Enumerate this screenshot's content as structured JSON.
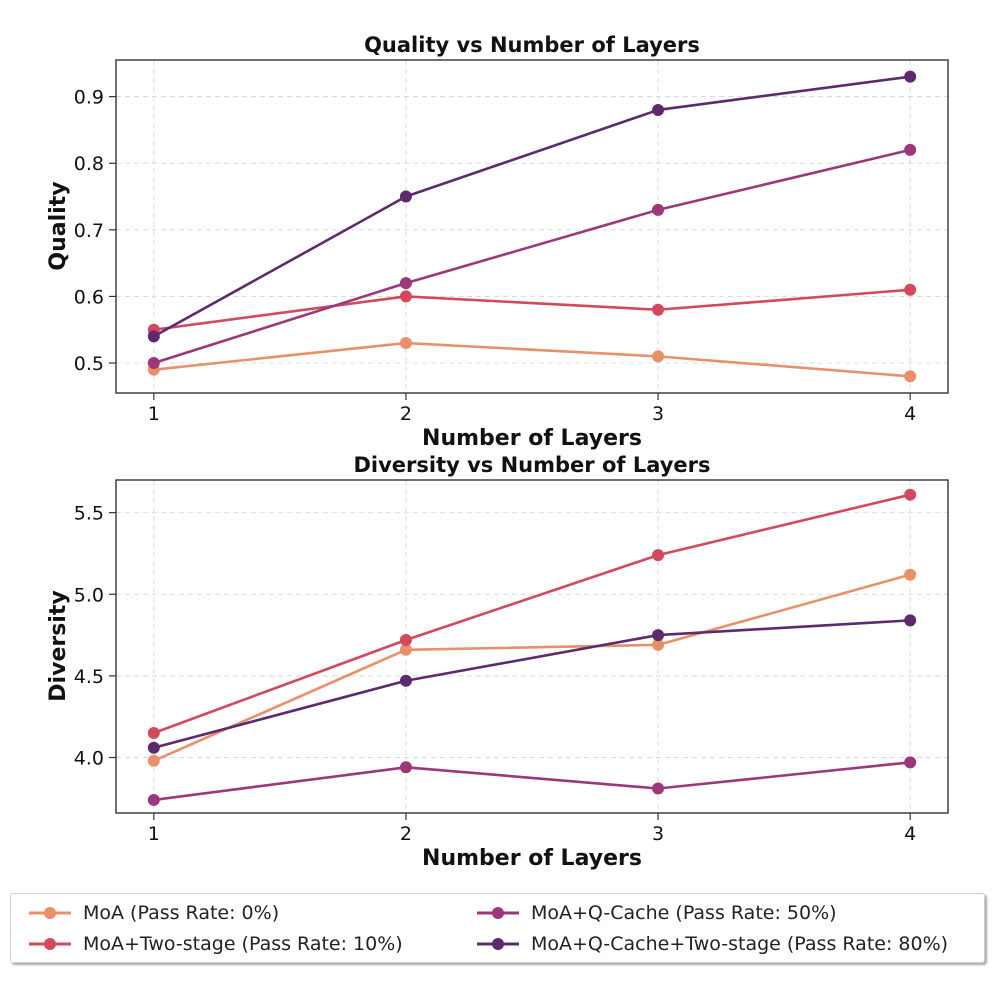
{
  "chart_data": [
    {
      "type": "line",
      "title": "Quality vs Number of Layers",
      "xlabel": "Number of Layers",
      "ylabel": "Quality",
      "x": [
        1,
        2,
        3,
        4
      ],
      "xlim": [
        0.85,
        4.15
      ],
      "ylim": [
        0.455,
        0.955
      ],
      "yticks": [
        0.5,
        0.6,
        0.7,
        0.8,
        0.9
      ],
      "ytick_labels": [
        "0.5",
        "0.6",
        "0.7",
        "0.8",
        "0.9"
      ],
      "xticks": [
        1,
        2,
        3,
        4
      ],
      "xtick_labels": [
        "1",
        "2",
        "3",
        "4"
      ],
      "grid": true,
      "series": [
        {
          "name": "MoA (Pass Rate: 0%)",
          "color": "#E8906A",
          "values": [
            0.49,
            0.53,
            0.51,
            0.48
          ]
        },
        {
          "name": "MoA+Two-stage (Pass Rate: 10%)",
          "color": "#D2495E",
          "values": [
            0.55,
            0.6,
            0.58,
            0.61
          ]
        },
        {
          "name": "MoA+Q-Cache (Pass Rate: 50%)",
          "color": "#9C3779",
          "values": [
            0.5,
            0.62,
            0.73,
            0.82
          ]
        },
        {
          "name": "MoA+Q-Cache+Two-stage (Pass Rate: 80%)",
          "color": "#5E2A6E",
          "values": [
            0.54,
            0.75,
            0.88,
            0.93
          ]
        }
      ]
    },
    {
      "type": "line",
      "title": "Diversity vs Number of Layers",
      "xlabel": "Number of Layers",
      "ylabel": "Diversity",
      "x": [
        1,
        2,
        3,
        4
      ],
      "xlim": [
        0.85,
        4.15
      ],
      "ylim": [
        3.66,
        5.7
      ],
      "yticks": [
        4.0,
        4.5,
        5.0,
        5.5
      ],
      "ytick_labels": [
        "4.0",
        "4.5",
        "5.0",
        "5.5"
      ],
      "xticks": [
        1,
        2,
        3,
        4
      ],
      "xtick_labels": [
        "1",
        "2",
        "3",
        "4"
      ],
      "grid": true,
      "series": [
        {
          "name": "MoA (Pass Rate: 0%)",
          "color": "#E8906A",
          "values": [
            3.98,
            4.66,
            4.69,
            5.12
          ]
        },
        {
          "name": "MoA+Two-stage (Pass Rate: 10%)",
          "color": "#D2495E",
          "values": [
            4.15,
            4.72,
            5.24,
            5.61
          ]
        },
        {
          "name": "MoA+Q-Cache (Pass Rate: 50%)",
          "color": "#9C3779",
          "values": [
            3.74,
            3.94,
            3.81,
            3.97
          ]
        },
        {
          "name": "MoA+Q-Cache+Two-stage (Pass Rate: 80%)",
          "color": "#5E2A6E",
          "values": [
            4.06,
            4.47,
            4.75,
            4.84
          ]
        }
      ]
    }
  ],
  "legend": {
    "placement": "bottom",
    "items": [
      {
        "label": "MoA (Pass Rate: 0%)",
        "color": "#E8906A"
      },
      {
        "label": "MoA+Q-Cache (Pass Rate: 50%)",
        "color": "#9C3779"
      },
      {
        "label": "MoA+Two-stage (Pass Rate: 10%)",
        "color": "#D2495E"
      },
      {
        "label": "MoA+Q-Cache+Two-stage (Pass Rate: 80%)",
        "color": "#5E2A6E"
      }
    ]
  }
}
